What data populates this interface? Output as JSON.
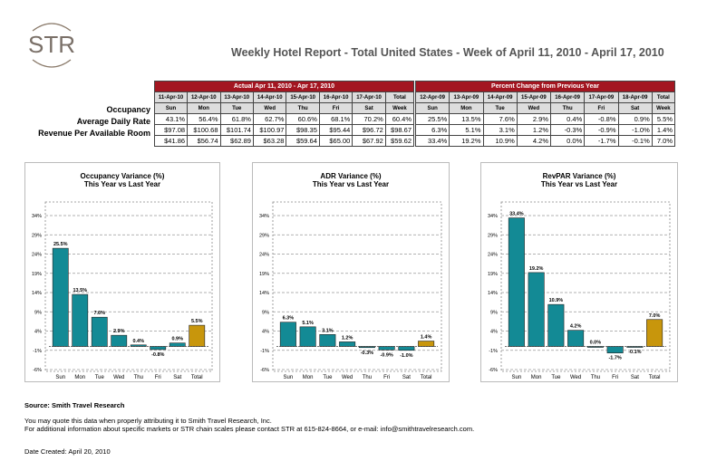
{
  "logo_text": "STR",
  "title": "Weekly Hotel Report - Total United States - Week of April 11, 2010 - April 17, 2010",
  "actual": {
    "header": "Actual Apr 11, 2010 - Apr 17, 2010",
    "dates": [
      "11-Apr-10",
      "12-Apr-10",
      "13-Apr-10",
      "14-Apr-10",
      "15-Apr-10",
      "16-Apr-10",
      "17-Apr-10",
      "Total"
    ],
    "days": [
      "Sun",
      "Mon",
      "Tue",
      "Wed",
      "Thu",
      "Fri",
      "Sat",
      "Week"
    ],
    "rows": [
      [
        "43.1%",
        "56.4%",
        "61.8%",
        "62.7%",
        "60.6%",
        "68.1%",
        "70.2%",
        "60.4%"
      ],
      [
        "$97.08",
        "$100.68",
        "$101.74",
        "$100.97",
        "$98.35",
        "$95.44",
        "$96.72",
        "$98.67"
      ],
      [
        "$41.86",
        "$56.74",
        "$62.89",
        "$63.28",
        "$59.64",
        "$65.00",
        "$67.92",
        "$59.62"
      ]
    ]
  },
  "change": {
    "header": "Percent Change from Previous Year",
    "dates": [
      "12-Apr-09",
      "13-Apr-09",
      "14-Apr-09",
      "15-Apr-09",
      "16-Apr-09",
      "17-Apr-09",
      "18-Apr-09",
      "Total"
    ],
    "days": [
      "Sun",
      "Mon",
      "Tue",
      "Wed",
      "Thu",
      "Fri",
      "Sat",
      "Week"
    ],
    "rows": [
      [
        "25.5%",
        "13.5%",
        "7.6%",
        "2.9%",
        "0.4%",
        "-0.8%",
        "0.9%",
        "5.5%"
      ],
      [
        "6.3%",
        "5.1%",
        "3.1%",
        "1.2%",
        "-0.3%",
        "-0.9%",
        "-1.0%",
        "1.4%"
      ],
      [
        "33.4%",
        "19.2%",
        "10.9%",
        "4.2%",
        "0.0%",
        "-1.7%",
        "-0.1%",
        "7.0%"
      ]
    ]
  },
  "row_labels": [
    "Occupancy",
    "Average Daily Rate",
    "Revenue Per Available Room"
  ],
  "colors": {
    "header": "#a31621",
    "bar": "#138a95",
    "total": "#c8960c"
  },
  "chart_data": [
    {
      "type": "bar",
      "title": "Occupancy Variance (%)",
      "subtitle": "This Year vs Last Year",
      "categories": [
        "Sun",
        "Mon",
        "Tue",
        "Wed",
        "Thu",
        "Fri",
        "Sat",
        "Total"
      ],
      "values": [
        25.5,
        13.5,
        7.6,
        2.9,
        0.4,
        -0.8,
        0.9,
        5.5
      ],
      "labels": [
        "25.5%",
        "13.5%",
        "7.6%",
        "2.9%",
        "0.4%",
        "-0.8%",
        "0.9%",
        "5.5%"
      ],
      "yticks": [
        "34%",
        "29%",
        "24%",
        "19%",
        "14%",
        "9%",
        "4%",
        "-1%",
        "-6%"
      ],
      "ylim": [
        -6,
        34
      ],
      "grid": true
    },
    {
      "type": "bar",
      "title": "ADR Variance (%)",
      "subtitle": "This Year vs Last Year",
      "categories": [
        "Sun",
        "Mon",
        "Tue",
        "Wed",
        "Thu",
        "Fri",
        "Sat",
        "Total"
      ],
      "values": [
        6.3,
        5.1,
        3.1,
        1.2,
        -0.3,
        -0.9,
        -1.0,
        1.4
      ],
      "labels": [
        "6.3%",
        "5.1%",
        "3.1%",
        "1.2%",
        "-0.3%",
        "-0.9%",
        "-1.0%",
        "1.4%"
      ],
      "yticks": [
        "34%",
        "29%",
        "24%",
        "19%",
        "14%",
        "9%",
        "4%",
        "-1%",
        "-6%"
      ],
      "ylim": [
        -6,
        34
      ],
      "grid": true
    },
    {
      "type": "bar",
      "title": "RevPAR Variance (%)",
      "subtitle": "This Year vs Last Year",
      "categories": [
        "Sun",
        "Mon",
        "Tue",
        "Wed",
        "Thu",
        "Fri",
        "Sat",
        "Total"
      ],
      "values": [
        33.4,
        19.2,
        10.9,
        4.2,
        0.0,
        -1.7,
        -0.1,
        7.0
      ],
      "labels": [
        "33.4%",
        "19.2%",
        "10.9%",
        "4.2%",
        "0.0%",
        "-1.7%",
        "-0.1%",
        "7.0%"
      ],
      "yticks": [
        "34%",
        "29%",
        "24%",
        "19%",
        "14%",
        "9%",
        "4%",
        "-1%",
        "-6%"
      ],
      "ylim": [
        -6,
        34
      ],
      "grid": true
    }
  ],
  "footer": {
    "source": "Source: Smith Travel Research",
    "line1": "You may quote this data when properly attributing it to Smith Travel Research, Inc.",
    "line2": "For additional information about specific markets or STR chain scales please contact STR at 615-824-8664, or e-mail: info@smithtravelresearch.com.",
    "date": "Date Created: April 20, 2010"
  }
}
